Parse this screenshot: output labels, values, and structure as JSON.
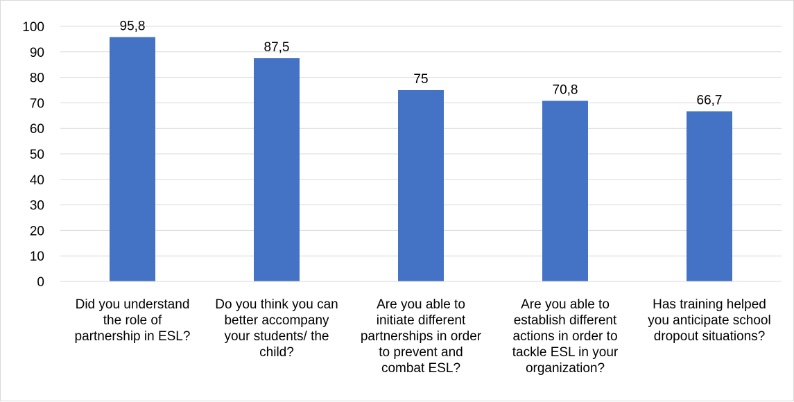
{
  "chart_data": {
    "type": "bar",
    "title": "",
    "xlabel": "",
    "ylabel": "",
    "ylim": [
      0,
      100
    ],
    "yticks": [
      0,
      10,
      20,
      30,
      40,
      50,
      60,
      70,
      80,
      90,
      100
    ],
    "grid": true,
    "legend": "none",
    "categories": [
      [
        "Did you understand",
        "the role of",
        "partnership in ESL?"
      ],
      [
        "Do you think you can",
        "better accompany",
        "your students/ the",
        "child?"
      ],
      [
        "Are you able to",
        "initiate different",
        "partnerships in order",
        "to prevent and",
        "combat ESL?"
      ],
      [
        "Are you able to",
        "establish different",
        "actions in order to",
        "tackle ESL in your",
        "organization?"
      ],
      [
        "Has training helped",
        "you anticipate school",
        "dropout situations?"
      ]
    ],
    "values": [
      95.8,
      87.5,
      75,
      70.8,
      66.7
    ],
    "data_labels": [
      "95,8",
      "87,5",
      "75",
      "70,8",
      "66,7"
    ],
    "bar_color": "#4472c4",
    "gridline_color": "#d9d9d9"
  }
}
